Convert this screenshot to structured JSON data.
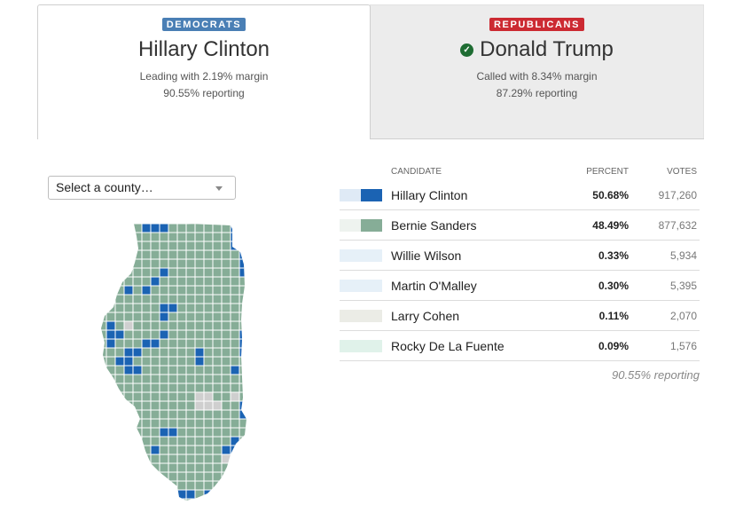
{
  "democrats": {
    "party_label": "DEMOCRATS",
    "leader": "Hillary Clinton",
    "status": "Leading with 2.19% margin",
    "reporting": "90.55% reporting"
  },
  "republicans": {
    "party_label": "REPUBLICANS",
    "winner": "Donald Trump",
    "status": "Called with 8.34% margin",
    "reporting": "87.29% reporting"
  },
  "county_select": {
    "selected": "Select a county…"
  },
  "results": {
    "headers": {
      "candidate": "CANDIDATE",
      "percent": "PERCENT",
      "votes": "VOTES"
    },
    "rows": [
      {
        "name": "Hillary Clinton",
        "percent": "50.68%",
        "votes": "917,260",
        "color_light": "#dfeaf6",
        "color_dark": "#1b63b3"
      },
      {
        "name": "Bernie Sanders",
        "percent": "48.49%",
        "votes": "877,632",
        "color_light": "#eef3ef",
        "color_dark": "#86ad97"
      },
      {
        "name": "Willie Wilson",
        "percent": "0.33%",
        "votes": "5,934",
        "color_light": "#e6f0f8",
        "color_dark": "#e6f0f8"
      },
      {
        "name": "Martin O'Malley",
        "percent": "0.30%",
        "votes": "5,395",
        "color_light": "#e6f0f8",
        "color_dark": "#e6f0f8"
      },
      {
        "name": "Larry Cohen",
        "percent": "0.11%",
        "votes": "2,070",
        "color_light": "#ebece6",
        "color_dark": "#ebece6"
      },
      {
        "name": "Rocky De La Fuente",
        "percent": "0.09%",
        "votes": "1,576",
        "color_light": "#e0f2ea",
        "color_dark": "#e0f2ea"
      }
    ],
    "reporting": "90.55% reporting"
  },
  "map_colors": {
    "clinton": "#1b63b3",
    "sanders": "#86ad97",
    "tie": "#cfcfcf",
    "border": "#ffffff"
  }
}
